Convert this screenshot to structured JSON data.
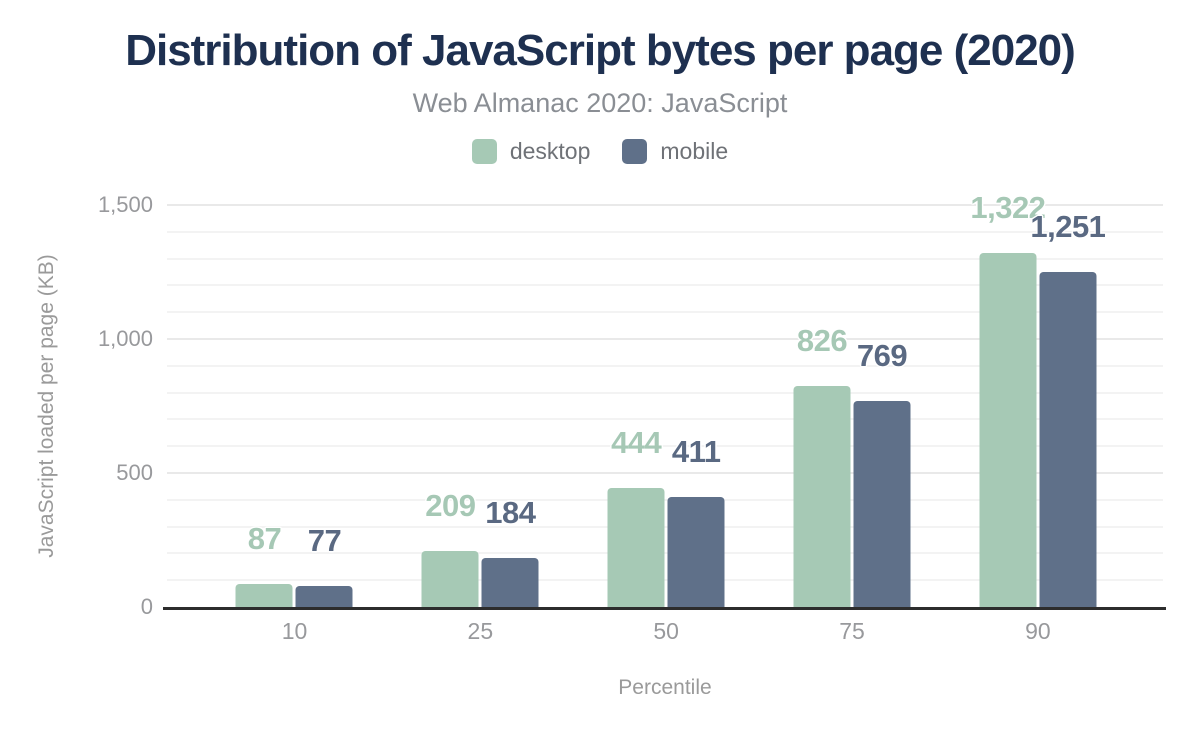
{
  "chart": {
    "title": "Distribution of JavaScript bytes per page (2020)",
    "subtitle": "Web Almanac 2020: JavaScript",
    "legend": [
      {
        "label": "desktop",
        "color": "#a6c9b5"
      },
      {
        "label": "mobile",
        "color": "#5f7089"
      }
    ],
    "colors": {
      "title": "#1e3050",
      "subtitle": "#8a8e94",
      "axis_text": "#98999c",
      "axis_line": "#2d2d2d",
      "grid_minor": "#f3f3f3",
      "grid_major": "#e9e9e9",
      "background": "#ffffff"
    },
    "chart_data": {
      "type": "bar",
      "title": "Distribution of JavaScript bytes per page (2020)",
      "subtitle": "Web Almanac 2020: JavaScript",
      "categories": [
        "10",
        "25",
        "50",
        "75",
        "90"
      ],
      "series": [
        {
          "name": "desktop",
          "color": "#a6c9b5",
          "label_color": "#a6c8b5",
          "values": [
            87,
            209,
            444,
            826,
            1322
          ],
          "value_labels": [
            "87",
            "209",
            "444",
            "826",
            "1,322"
          ]
        },
        {
          "name": "mobile",
          "color": "#5f7089",
          "label_color": "#5a6982",
          "values": [
            77,
            184,
            411,
            769,
            1251
          ],
          "value_labels": [
            "77",
            "184",
            "411",
            "769",
            "1,251"
          ]
        }
      ],
      "xlabel": "Percentile",
      "ylabel": "JavaScript loaded per page (KB)",
      "ylim": [
        0,
        1500
      ],
      "yticks": [
        {
          "value": 0,
          "label": "0"
        },
        {
          "value": 500,
          "label": "500"
        },
        {
          "value": 1000,
          "label": "1,000"
        },
        {
          "value": 1500,
          "label": "1,500"
        }
      ],
      "grid": {
        "horizontal": true,
        "minor_step": 100,
        "major_step": 500
      },
      "legend_position": "top"
    }
  }
}
